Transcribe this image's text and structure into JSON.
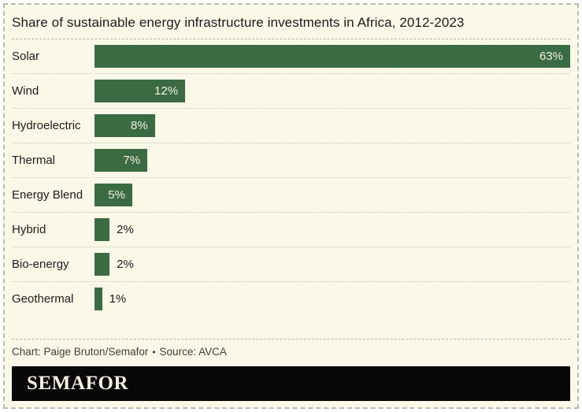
{
  "title": "Share of sustainable energy infrastructure investments in Africa, 2012-2023",
  "chart_data": {
    "type": "bar",
    "orientation": "horizontal",
    "title": "Share of sustainable energy infrastructure investments in Africa, 2012-2023",
    "categories": [
      "Solar",
      "Wind",
      "Hydroelectric",
      "Thermal",
      "Energy Blend",
      "Hybrid",
      "Bio-energy",
      "Geothermal"
    ],
    "values": [
      63,
      12,
      8,
      7,
      5,
      2,
      2,
      1
    ],
    "value_labels": [
      "63%",
      "12%",
      "8%",
      "7%",
      "5%",
      "2%",
      "2%",
      "1%"
    ],
    "value_suffix": "%",
    "xlim": [
      0,
      63
    ],
    "grid": false,
    "legend": false,
    "bar_color": "#3a6b42",
    "inside_label_min_value": 5,
    "row_separator_style": "dotted"
  },
  "footer": {
    "credit": "Chart: Paige Bruton/Semafor",
    "bullet": "•",
    "source": "Source: AVCA",
    "brand": "SEMAFOR"
  },
  "colors": {
    "page_bg": "#ffffff",
    "background": "#faf8e7",
    "outer_border": "#bcbaad",
    "bar": "#3a6b42",
    "text": "#1c1c1c",
    "inside_value_text": "#f3f1e4",
    "credit_text": "#403f39",
    "divider_dashed": "#b3b1a4",
    "divider_dotted": "#c9c6b6",
    "brand_bar_bg": "#080808",
    "brand_text": "#f5f1e0"
  }
}
